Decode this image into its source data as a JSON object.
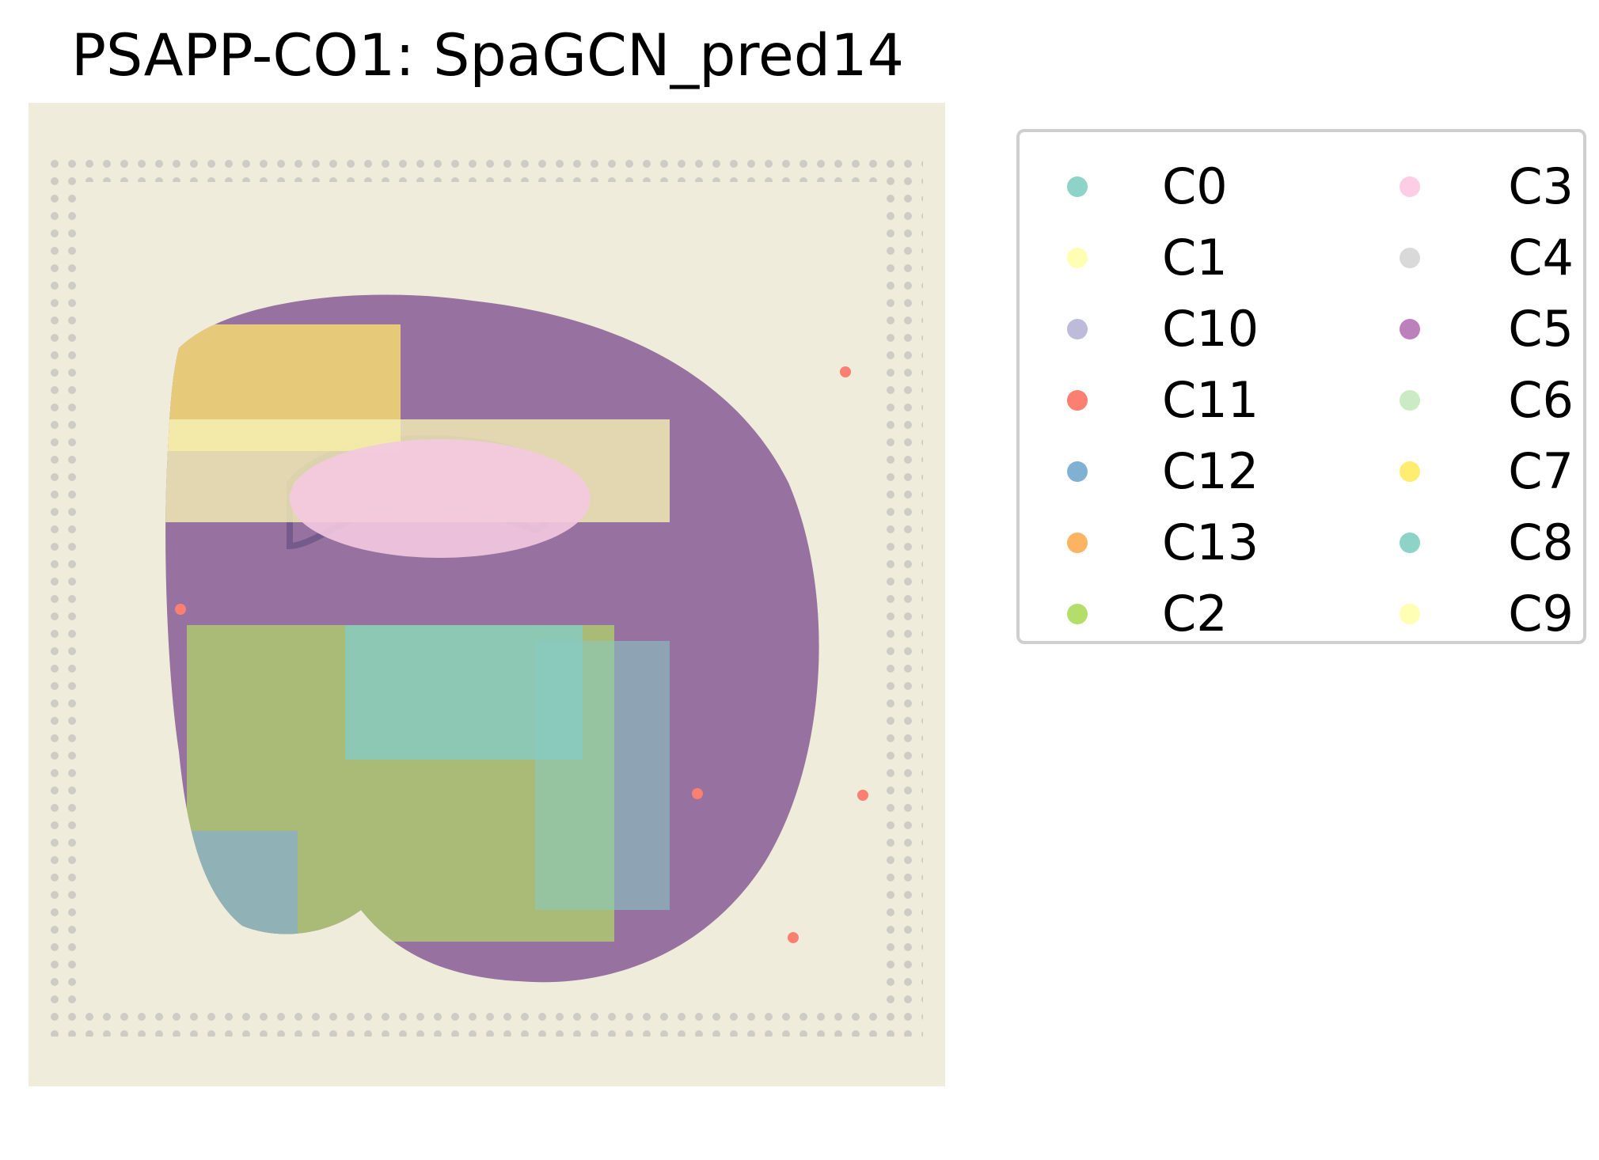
{
  "title": "PSAPP-CO1: SpaGCN_pred14",
  "legend": {
    "items": [
      {
        "label": "C0",
        "color": "#8dd3c7"
      },
      {
        "label": "C1",
        "color": "#ffffb3"
      },
      {
        "label": "C10",
        "color": "#bebada"
      },
      {
        "label": "C11",
        "color": "#fb8072"
      },
      {
        "label": "C12",
        "color": "#80b1d3"
      },
      {
        "label": "C13",
        "color": "#fdb462"
      },
      {
        "label": "C2",
        "color": "#b3de69"
      },
      {
        "label": "C3",
        "color": "#fccde5"
      },
      {
        "label": "C4",
        "color": "#d9d9d9"
      },
      {
        "label": "C5",
        "color": "#bc80bd"
      },
      {
        "label": "C6",
        "color": "#ccebc5"
      },
      {
        "label": "C7",
        "color": "#ffed6f"
      },
      {
        "label": "C8",
        "color": "#8dd3c7"
      },
      {
        "label": "C9",
        "color": "#ffffb3"
      }
    ]
  }
}
